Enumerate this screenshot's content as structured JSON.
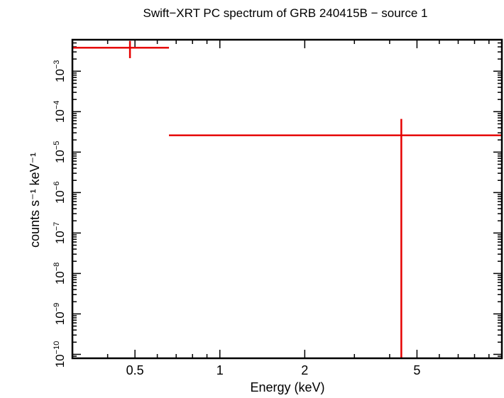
{
  "chart_data": {
    "type": "scatter",
    "title": "Swift−XRT PC spectrum of GRB 240415B − source 1",
    "xlabel": "Energy (keV)",
    "ylabel": "counts s⁻¹ keV⁻¹",
    "x_scale": "log",
    "y_scale": "log",
    "xlim": [
      0.3,
      10
    ],
    "ylim": [
      8e-11,
      0.006
    ],
    "x_ticks": [
      {
        "value": 0.5,
        "label": "0.5"
      },
      {
        "value": 1,
        "label": "1"
      },
      {
        "value": 2,
        "label": "2"
      },
      {
        "value": 5,
        "label": "5"
      }
    ],
    "y_ticks": [
      {
        "value": 1e-10,
        "base": "10",
        "exp": "−10"
      },
      {
        "value": 1e-09,
        "base": "10",
        "exp": "−9"
      },
      {
        "value": 1e-08,
        "base": "10",
        "exp": "−8"
      },
      {
        "value": 1e-07,
        "base": "10",
        "exp": "−7"
      },
      {
        "value": 1e-06,
        "base": "10",
        "exp": "−6"
      },
      {
        "value": 1e-05,
        "base": "10",
        "exp": "−5"
      },
      {
        "value": 0.0001,
        "base": "10",
        "exp": "−4"
      },
      {
        "value": 0.001,
        "base": "10",
        "exp": "−3"
      }
    ],
    "grid": false,
    "series": [
      {
        "color": "#e60000",
        "points": [
          {
            "x": 0.48,
            "xlo": 0.3,
            "xhi": 0.66,
            "y": 0.0038,
            "ylo": 0.0021,
            "yhi": 0.0056
          },
          {
            "x": 4.4,
            "xlo": 0.66,
            "xhi": 10,
            "y": 2.6e-05,
            "ylo": 8e-11,
            "yhi": 6.6e-05
          }
        ]
      }
    ]
  }
}
